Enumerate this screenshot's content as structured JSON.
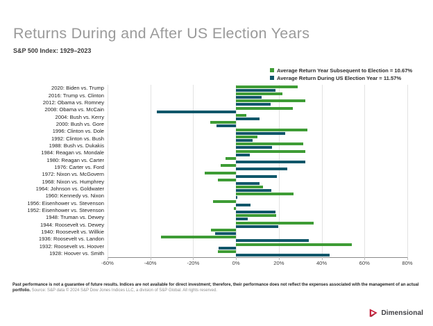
{
  "header": {
    "title": "Returns During and After US Election Years",
    "subtitle": "S&P 500 Index: 1929–2023"
  },
  "chart_data": {
    "type": "bar",
    "orientation": "horizontal",
    "title": "Returns During and After US Election Years",
    "subtitle": "S&P 500 Index: 1929–2023",
    "categories": [
      "2020: Biden vs. Trump",
      "2016: Trump vs. Clinton",
      "2012: Obama vs. Romney",
      "2008: Obama vs. McCain",
      "2004: Bush vs. Kerry",
      "2000: Bush vs. Gore",
      "1996: Clinton vs. Dole",
      "1992: Clinton vs. Bush",
      "1988: Bush vs. Dukakis",
      "1984: Reagan vs. Mondale",
      "1980: Reagan vs. Carter",
      "1976: Carter vs. Ford",
      "1972: Nixon vs. McGovern",
      "1968: Nixon vs. Humphrey",
      "1964: Johnson vs. Goldwater",
      "1960: Kennedy vs. Nixon",
      "1956: Eisenhower vs. Stevenson",
      "1952: Eisenhower vs. Stevenson",
      "1948: Truman vs. Dewey",
      "1944: Roosevelt vs. Dewey",
      "1940: Roosevelt vs. Willkie",
      "1936: Roosevelt vs. Landon",
      "1932: Roosevelt vs. Hoover",
      "1928: Hoover vs. Smith"
    ],
    "series": [
      {
        "name": "Average Return Year Subsequent to Election = 10.67%",
        "color": "#3E9C35",
        "values": [
          28.7,
          21.8,
          32.4,
          26.5,
          4.9,
          -11.9,
          33.4,
          10.1,
          31.5,
          32.2,
          -4.9,
          -7.2,
          -14.7,
          -8.5,
          12.5,
          26.9,
          -10.8,
          -1.0,
          18.8,
          36.4,
          -11.6,
          -35.0,
          54.0,
          -8.4
        ]
      },
      {
        "name": "Average Return During US Election Year = 11.57%",
        "color": "#10576A",
        "values": [
          18.4,
          12.0,
          16.0,
          -37.0,
          10.9,
          -9.1,
          23.0,
          7.6,
          16.8,
          6.3,
          32.4,
          23.8,
          19.0,
          11.1,
          16.5,
          0.5,
          6.6,
          18.4,
          5.5,
          19.7,
          -9.8,
          33.9,
          -8.2,
          43.6
        ]
      }
    ],
    "xlim": [
      -60,
      80
    ],
    "x_tick_values": [
      -60,
      -40,
      -20,
      0,
      20,
      40,
      60,
      80
    ],
    "x_tick_labels": [
      "-60%",
      "-40%",
      "-20%",
      "0%",
      "20%",
      "40%",
      "60%",
      "80%"
    ],
    "grid": true,
    "legend_position": "top-right"
  },
  "footnote": {
    "disclaimer": "Past performance is not a guarantee of future results. Indices are not available for direct investment; therefore, their performance does not reflect the expenses associated with the management of an actual portfolio.",
    "source": " Source: S&P data © 2024 S&P Dow Jones Indices LLC, a division of S&P Global. All rights reserved."
  },
  "logo": {
    "text": "Dimensional",
    "accent_color": "#C41F3A"
  }
}
